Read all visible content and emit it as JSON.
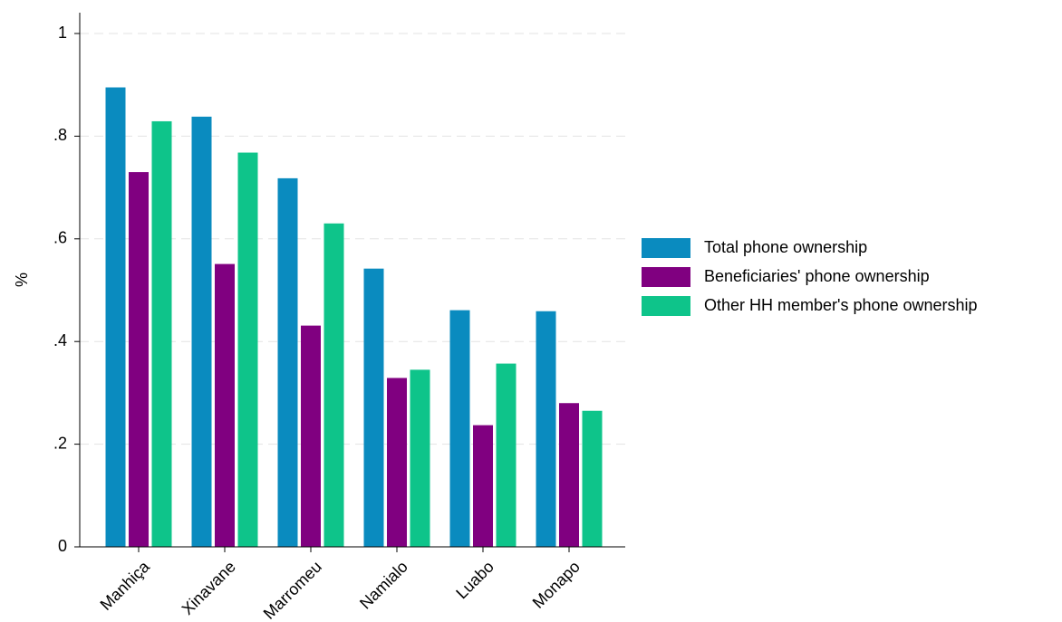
{
  "chart_data": {
    "type": "bar",
    "title": "",
    "xlabel": "",
    "ylabel": "%",
    "ylim": [
      0,
      1
    ],
    "yticks": [
      0,
      0.2,
      0.4,
      0.6,
      0.8,
      1
    ],
    "ytick_labels": [
      "0",
      ".2",
      ".4",
      ".6",
      ".8",
      "1"
    ],
    "grid": true,
    "legend_position": "right",
    "categories": [
      "Manhiça",
      "Xinavane",
      "Marromeu",
      "Namialo",
      "Luabo",
      "Monapo"
    ],
    "series": [
      {
        "name": "Total phone ownership",
        "color": "#0a8bbf",
        "values": [
          0.895,
          0.838,
          0.718,
          0.542,
          0.461,
          0.459
        ]
      },
      {
        "name": "Beneficiaries' phone ownership",
        "color": "#800080",
        "values": [
          0.73,
          0.551,
          0.431,
          0.329,
          0.237,
          0.28
        ]
      },
      {
        "name": "Other HH member's phone ownership",
        "color": "#0ec48a",
        "values": [
          0.829,
          0.768,
          0.63,
          0.345,
          0.357,
          0.265
        ]
      }
    ]
  }
}
